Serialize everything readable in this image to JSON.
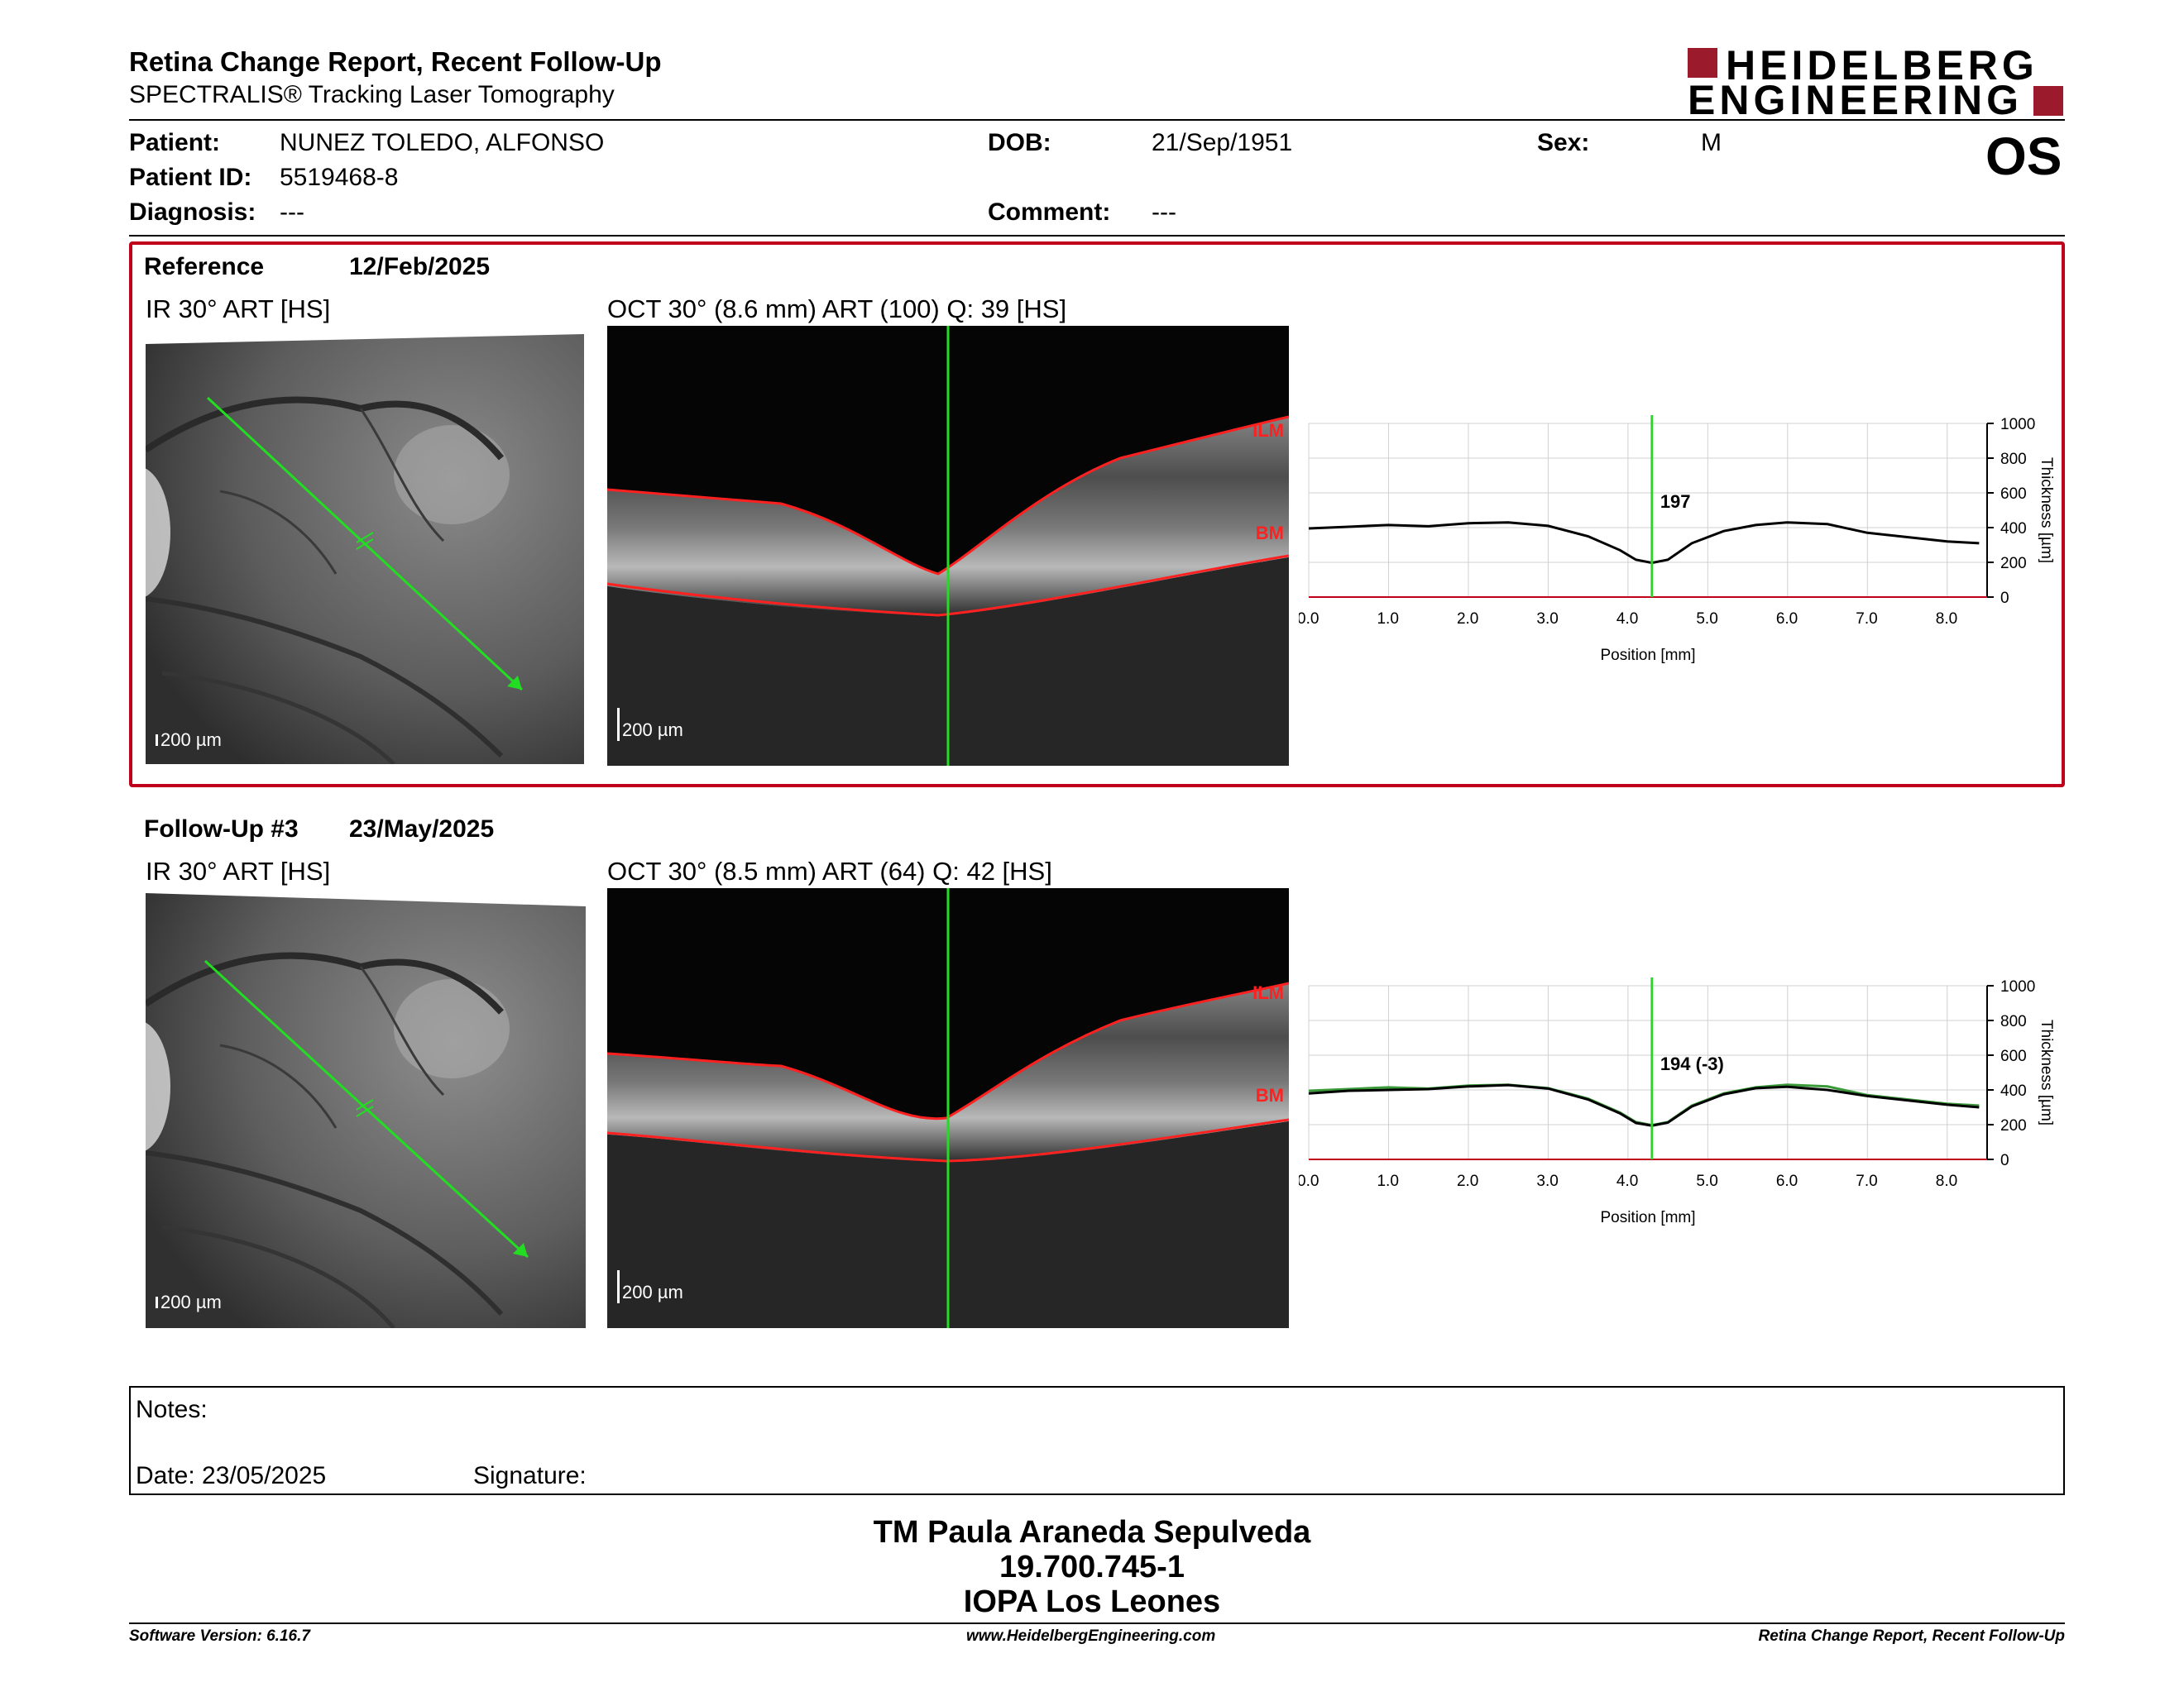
{
  "header": {
    "title": "Retina Change Report, Recent Follow-Up",
    "subtitle": "SPECTRALIS® Tracking Laser Tomography",
    "brand_line1": "HEIDELBERG",
    "brand_line2": "ENGINEERING",
    "eye": "OS"
  },
  "patient": {
    "patient_label": "Patient:",
    "patient_value": "NUNEZ TOLEDO, ALFONSO",
    "id_label": "Patient ID:",
    "id_value": "5519468-8",
    "diagnosis_label": "Diagnosis:",
    "diagnosis_value": "---",
    "dob_label": "DOB:",
    "dob_value": "21/Sep/1951",
    "comment_label": "Comment:",
    "comment_value": "---",
    "sex_label": "Sex:",
    "sex_value": "M"
  },
  "exams": [
    {
      "label": "Reference",
      "date": "12/Feb/2025",
      "ir_title": "IR 30° ART [HS]",
      "oct_title": "OCT 30° (8.6 mm) ART (100) Q: 39 [HS]",
      "scale_label": "200 µm",
      "ilm": "ILM",
      "bm": "BM",
      "thickness_label": "197",
      "chart_data": {
        "type": "line",
        "xlabel": "Position [mm]",
        "ylabel": "Thickness [µm]",
        "xlim": [
          0,
          8.5
        ],
        "ylim": [
          0,
          1000
        ],
        "xticks": [
          "0.0",
          "1.0",
          "2.0",
          "3.0",
          "4.0",
          "5.0",
          "6.0",
          "7.0",
          "8.0"
        ],
        "yticks": [
          "0",
          "200",
          "400",
          "600",
          "800",
          "1000"
        ],
        "cursor_x": 4.3,
        "series": [
          {
            "color": "#000000",
            "x": [
              0,
              0.5,
              1.0,
              1.5,
              2.0,
              2.5,
              3.0,
              3.5,
              3.9,
              4.1,
              4.3,
              4.5,
              4.8,
              5.2,
              5.6,
              6.0,
              6.5,
              7.0,
              7.5,
              8.0,
              8.4
            ],
            "y": [
              395,
              405,
              415,
              408,
              425,
              430,
              410,
              350,
              270,
              215,
              197,
              215,
              310,
              380,
              415,
              430,
              420,
              370,
              345,
              320,
              310
            ]
          }
        ]
      }
    },
    {
      "label": "Follow-Up #3",
      "date": "23/May/2025",
      "ir_title": "IR 30° ART [HS]",
      "oct_title": "OCT 30° (8.5 mm) ART (64) Q: 42 [HS]",
      "scale_label": "200 µm",
      "ilm": "ILM",
      "bm": "BM",
      "thickness_label": "194 (-3)",
      "chart_data": {
        "type": "line",
        "xlabel": "Position [mm]",
        "ylabel": "Thickness [µm]",
        "xlim": [
          0,
          8.5
        ],
        "ylim": [
          0,
          1000
        ],
        "xticks": [
          "0.0",
          "1.0",
          "2.0",
          "3.0",
          "4.0",
          "5.0",
          "6.0",
          "7.0",
          "8.0"
        ],
        "yticks": [
          "0",
          "200",
          "400",
          "600",
          "800",
          "1000"
        ],
        "cursor_x": 4.3,
        "series": [
          {
            "color": "#3a9a3a",
            "x": [
              0,
              0.5,
              1.0,
              1.5,
              2.0,
              2.5,
              3.0,
              3.5,
              3.9,
              4.1,
              4.3,
              4.5,
              4.8,
              5.2,
              5.6,
              6.0,
              6.5,
              7.0,
              7.5,
              8.0,
              8.4
            ],
            "y": [
              395,
              405,
              415,
              408,
              425,
              430,
              410,
              350,
              270,
              215,
              197,
              215,
              310,
              380,
              415,
              430,
              420,
              370,
              345,
              320,
              310
            ]
          },
          {
            "color": "#000000",
            "x": [
              0,
              0.5,
              1.0,
              1.5,
              2.0,
              2.5,
              3.0,
              3.5,
              3.9,
              4.1,
              4.3,
              4.5,
              4.8,
              5.2,
              5.6,
              6.0,
              6.5,
              7.0,
              7.5,
              8.0,
              8.4
            ],
            "y": [
              380,
              395,
              400,
              405,
              420,
              428,
              408,
              345,
              265,
              210,
              194,
              212,
              305,
              375,
              410,
              418,
              400,
              365,
              340,
              315,
              300
            ]
          }
        ]
      }
    }
  ],
  "notes": {
    "notes_label": "Notes:",
    "date_label": "Date: 23/05/2025",
    "signature_label": "Signature:"
  },
  "signature_block": {
    "name": "TM Paula Araneda Sepulveda",
    "rut": "19.700.745-1",
    "institution": "IOPA Los Leones"
  },
  "footer": {
    "software": "Software Version: 6.16.7",
    "website": "www.HeidelbergEngineering.com",
    "report": "Retina Change Report, Recent Follow-Up"
  },
  "colors": {
    "brand": "#9b1b2c",
    "highlight_border": "#c0001a",
    "scan_line": "#22dd22",
    "layer_line": "#ff2020"
  }
}
